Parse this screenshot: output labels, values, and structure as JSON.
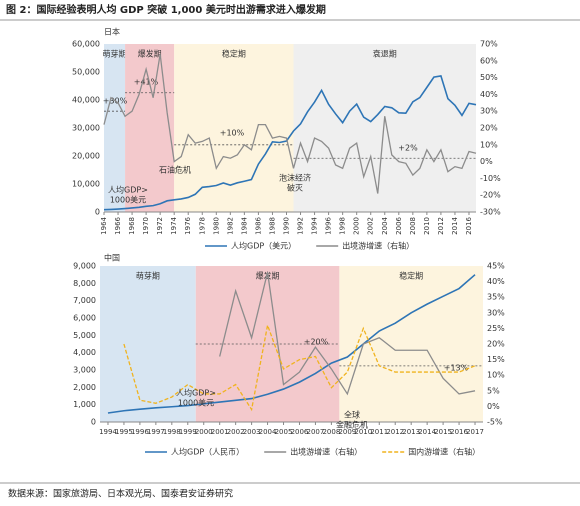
{
  "header": {
    "title": "图 2：国际经验表明人均 GDP 突破 1,000 美元时出游需求进入爆发期"
  },
  "chart_data": [
    {
      "type": "line",
      "title": "日本",
      "x": [
        1964,
        1965,
        1966,
        1967,
        1968,
        1969,
        1970,
        1971,
        1972,
        1973,
        1974,
        1975,
        1976,
        1977,
        1978,
        1979,
        1980,
        1981,
        1982,
        1983,
        1984,
        1985,
        1986,
        1987,
        1988,
        1989,
        1990,
        1991,
        1992,
        1993,
        1994,
        1995,
        1996,
        1997,
        1998,
        1999,
        2000,
        2001,
        2002,
        2003,
        2004,
        2005,
        2006,
        2007,
        2008,
        2009,
        2010,
        2011,
        2012,
        2013,
        2014,
        2015,
        2016,
        2017
      ],
      "xlim": [
        1964,
        2017
      ],
      "xticks": [
        1964,
        1966,
        1968,
        1970,
        1972,
        1974,
        1976,
        1978,
        1980,
        1982,
        1984,
        1986,
        1988,
        1990,
        1992,
        1994,
        1996,
        1998,
        2000,
        2002,
        2004,
        2006,
        2008,
        2010,
        2012,
        2014,
        2016
      ],
      "ylim": [
        0,
        60000
      ],
      "yticks": [
        0,
        {
          "value": 10000,
          "label": "10,000"
        },
        {
          "value": 20000,
          "label": "20,000"
        },
        {
          "value": 30000,
          "label": "30,000"
        },
        {
          "value": 40000,
          "label": "40,000"
        },
        {
          "value": 50000,
          "label": "50,000"
        },
        {
          "value": 60000,
          "label": "60,000"
        }
      ],
      "y2lim": [
        -30,
        70
      ],
      "y2ticks": [
        {
          "value": -30,
          "label": "-30%"
        },
        {
          "value": -20,
          "label": "-20%"
        },
        {
          "value": -10,
          "label": "-10%"
        },
        {
          "value": 0,
          "label": "0%"
        },
        {
          "value": 10,
          "label": "10%"
        },
        {
          "value": 20,
          "label": "20%"
        },
        {
          "value": 30,
          "label": "30%"
        },
        {
          "value": 40,
          "label": "40%"
        },
        {
          "value": 50,
          "label": "50%"
        },
        {
          "value": 60,
          "label": "60%"
        },
        {
          "value": 70,
          "label": "70%"
        }
      ],
      "series": [
        {
          "name": "人均GDP（美元）",
          "color": "#2e75b6",
          "axis": "y",
          "values": [
            835,
            920,
            1060,
            1230,
            1450,
            1670,
            2040,
            2270,
            2950,
            3990,
            4350,
            4660,
            5200,
            6330,
            8820,
            9100,
            9460,
            10360,
            9580,
            10420,
            10980,
            11580,
            17110,
            20750,
            25050,
            24820,
            25360,
            28930,
            31460,
            35770,
            39270,
            43440,
            38440,
            35020,
            31900,
            36030,
            38530,
            33850,
            32290,
            34800,
            37690,
            37220,
            35430,
            35280,
            39340,
            40860,
            44510,
            48170,
            48600,
            40450,
            38110,
            34520,
            38790,
            38330
          ]
        },
        {
          "name": "出境游增速（右轴）",
          "color": "#8c8c8c",
          "axis": "y2",
          "values": [
            22,
            38,
            35,
            27,
            30,
            40,
            55,
            38,
            64,
            29,
            0,
            3,
            16,
            11,
            12,
            14,
            -4,
            3,
            2,
            4,
            10,
            7,
            22,
            22,
            14,
            15,
            14,
            -4,
            11,
            0,
            14,
            12,
            8,
            -2,
            -4,
            8,
            11,
            -9,
            3,
            -19,
            27,
            4,
            0,
            -1,
            -8,
            -4,
            7,
            0,
            7,
            -6,
            -3,
            -4,
            6,
            5
          ]
        }
      ],
      "phases": [
        {
          "name": "萌芽期",
          "start": 1964,
          "end": 1967,
          "color": "#d7e5f2",
          "average": 30,
          "average_label": "+30%"
        },
        {
          "name": "爆发期",
          "start": 1967,
          "end": 1974,
          "color": "#f3c9cc",
          "average": 41,
          "average_label": "+41%"
        },
        {
          "name": "稳定期",
          "start": 1974,
          "end": 1991,
          "color": "#fdf4de",
          "average": 10,
          "average_label": "+10%"
        },
        {
          "name": "衰退期",
          "start": 1991,
          "end": 2017,
          "color": "#efefef",
          "average": 2,
          "average_label": "+2%"
        }
      ],
      "annotations": [
        {
          "lines": [
            "人均GDP>",
            "1000美元"
          ]
        },
        {
          "lines": [
            "石油危机"
          ]
        },
        {
          "lines": [
            "泡沫经济",
            "破灭"
          ]
        }
      ]
    },
    {
      "type": "line",
      "title": "中国",
      "x": [
        1994,
        1995,
        1996,
        1997,
        1998,
        1999,
        2000,
        2001,
        2002,
        2003,
        2004,
        2005,
        2006,
        2007,
        2008,
        2009,
        2010,
        2011,
        2012,
        2013,
        2014,
        2015,
        2016,
        2017
      ],
      "xlim": [
        1993.5,
        2017.5
      ],
      "xticks": [
        1994,
        1995,
        1996,
        1997,
        1998,
        1999,
        2000,
        2001,
        2002,
        2003,
        2004,
        2005,
        2006,
        2007,
        2008,
        2009,
        2010,
        2011,
        2012,
        2013,
        2014,
        2015,
        2016,
        2017
      ],
      "ylim": [
        0,
        9000
      ],
      "yticks": [
        0,
        {
          "value": 1000,
          "label": "1,000"
        },
        {
          "value": 2000,
          "label": "2,000"
        },
        {
          "value": 3000,
          "label": "3,000"
        },
        {
          "value": 4000,
          "label": "4,000"
        },
        {
          "value": 5000,
          "label": "5,000"
        },
        {
          "value": 6000,
          "label": "6,000"
        },
        {
          "value": 7000,
          "label": "7,000"
        },
        {
          "value": 8000,
          "label": "8,000"
        },
        {
          "value": 9000,
          "label": "9,000"
        }
      ],
      "y2lim": [
        -5,
        45
      ],
      "y2ticks": [
        {
          "value": -5,
          "label": "-5%"
        },
        {
          "value": 0,
          "label": "0%"
        },
        {
          "value": 5,
          "label": "5%"
        },
        {
          "value": 10,
          "label": "10%"
        },
        {
          "value": 15,
          "label": "15%"
        },
        {
          "value": 20,
          "label": "20%"
        },
        {
          "value": 25,
          "label": "25%"
        },
        {
          "value": 30,
          "label": "30%"
        },
        {
          "value": 35,
          "label": "35%"
        },
        {
          "value": 40,
          "label": "40%"
        },
        {
          "value": 45,
          "label": "45%"
        }
      ],
      "series": [
        {
          "name": "人均GDP（人民币）",
          "color": "#2e75b6",
          "axis": "y",
          "values": [
            520,
            650,
            740,
            820,
            880,
            950,
            1050,
            1150,
            1250,
            1350,
            1600,
            1900,
            2300,
            2800,
            3400,
            3750,
            4500,
            5250,
            5700,
            6300,
            6800,
            7250,
            7700,
            8500
          ]
        },
        {
          "name": "出境游增速（右轴）",
          "color": "#8c8c8c",
          "axis": "y2",
          "values": [
            null,
            null,
            null,
            null,
            null,
            null,
            null,
            16,
            37,
            22,
            43,
            7,
            11,
            19,
            12,
            4,
            20,
            22,
            18,
            18,
            18,
            9,
            4,
            5
          ]
        },
        {
          "name": "国内游增速（右轴）",
          "color": "#f0b31e",
          "axis": "y2",
          "dash": true,
          "values": [
            null,
            20,
            2,
            1,
            3,
            7,
            4,
            4,
            7,
            -1,
            26,
            12,
            15,
            16,
            6,
            11,
            25,
            13,
            11,
            11,
            11,
            11,
            11,
            13
          ]
        }
      ],
      "phases": [
        {
          "name": "萌芽期",
          "start": 1993.5,
          "end": 1999.5,
          "color": "#d7e5f2"
        },
        {
          "name": "爆发期",
          "start": 1999.5,
          "end": 2008.5,
          "color": "#f3c9cc",
          "average": 20,
          "average_label": "+20%"
        },
        {
          "name": "稳定期",
          "start": 2008.5,
          "end": 2017.5,
          "color": "#fdf4de",
          "average": 13,
          "average_label": "+13%"
        }
      ],
      "annotations": [
        {
          "lines": [
            "人均GDP>",
            "1000美元"
          ]
        },
        {
          "lines": [
            "全球",
            "金融危机"
          ]
        }
      ]
    }
  ],
  "footer": {
    "source": "数据来源：国家旅游局、日本观光局、国泰君安证券研究"
  }
}
